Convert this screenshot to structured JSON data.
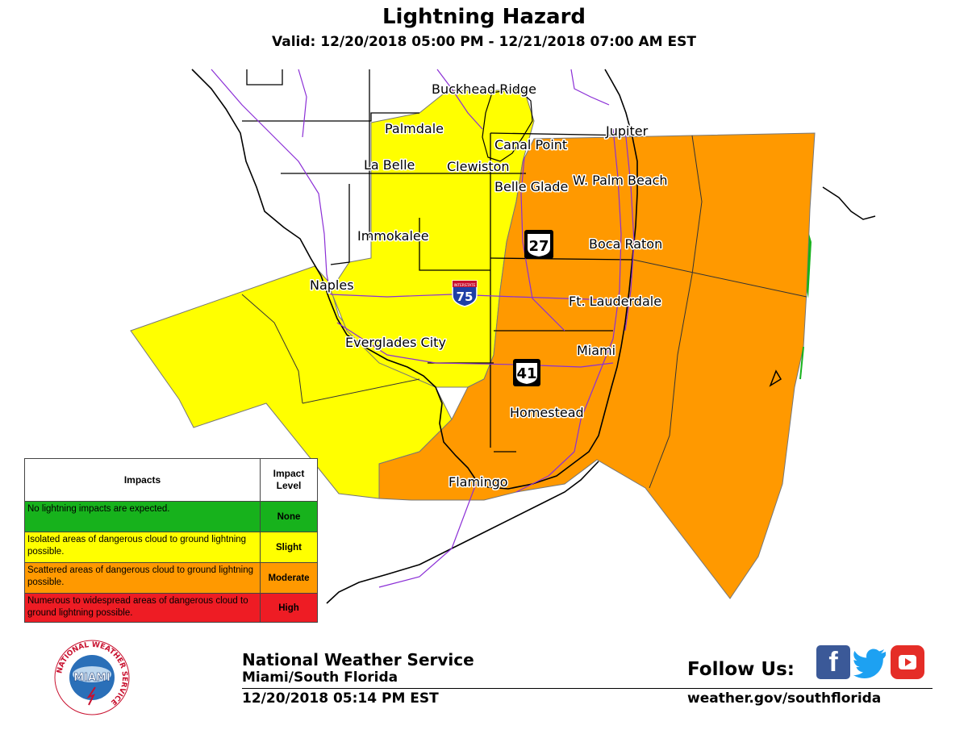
{
  "header": {
    "title": "Lightning Hazard",
    "valid": "Valid: 12/20/2018 05:00 PM - 12/21/2018 07:00 AM EST"
  },
  "map": {
    "hazard_colors": {
      "slight": "#ffff00",
      "moderate": "#ff9900",
      "none": "#17b21c",
      "high": "#ee1c24"
    },
    "cities": {
      "buckhead_ridge": "Buckhead Ridge",
      "palmdale": "Palmdale",
      "canal_point": "Canal Point",
      "jupiter": "Jupiter",
      "la_belle": "La Belle",
      "clewiston": "Clewiston",
      "w_palm_beach": "W. Palm Beach",
      "belle_glade": "Belle Glade",
      "immokalee": "Immokalee",
      "boca_raton": "Boca Raton",
      "naples": "Naples",
      "ft_lauderdale": "Ft. Lauderdale",
      "everglades_city": "Everglades City",
      "miami": "Miami",
      "homestead": "Homestead",
      "flamingo": "Flamingo"
    },
    "shields": {
      "us27": "27",
      "i75": "75",
      "i75_banner": "INTERSTATE",
      "us41": "41"
    }
  },
  "legend": {
    "header_impacts": "Impacts",
    "header_level": "Impact Level",
    "rows": [
      {
        "impact": "No lightning impacts are expected.",
        "level": "None"
      },
      {
        "impact": "Isolated areas of dangerous cloud to ground lightning possible.",
        "level": "Slight"
      },
      {
        "impact": "Scattered areas of dangerous cloud to ground lightning possible.",
        "level": "Moderate"
      },
      {
        "impact": "Numerous to widespread areas of dangerous cloud to ground lightning possible.",
        "level": "High"
      }
    ]
  },
  "footer": {
    "logo_text": "MIAMI",
    "logo_ring": "NATIONAL WEATHER SERVICE",
    "org": "National Weather Service",
    "office": "Miami/South Florida",
    "issued": "12/20/2018 05:14 PM EST",
    "follow": "Follow Us:",
    "website": "weather.gov/southflorida",
    "social_icons": [
      "facebook-icon",
      "twitter-icon",
      "youtube-icon"
    ]
  }
}
